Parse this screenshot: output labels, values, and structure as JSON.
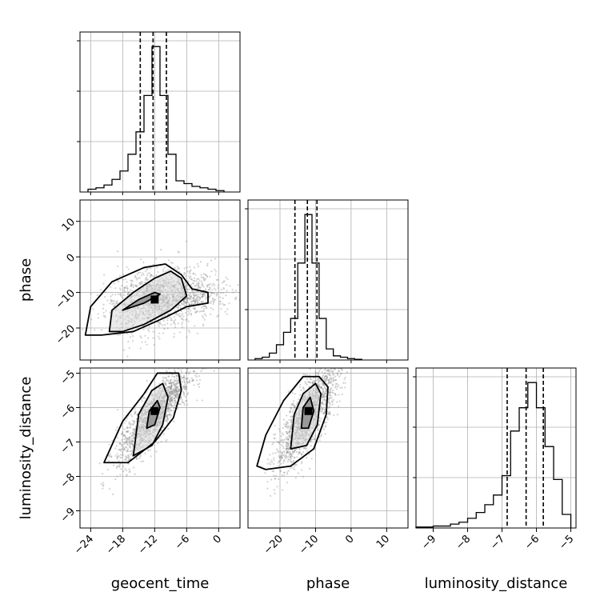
{
  "chart_data": {
    "type": "corner",
    "parameters": [
      "geocent_time",
      "phase",
      "luminosity_distance"
    ],
    "axis_labels": {
      "geocent_time": "geocent_time",
      "phase": "phase",
      "luminosity_distance": "luminosity_distance"
    },
    "ranges": {
      "geocent_time": [
        -26,
        4
      ],
      "phase": [
        -29,
        16
      ],
      "luminosity_distance": [
        -9.5,
        -4.85
      ]
    },
    "ticks": {
      "geocent_time": [
        -24,
        -18,
        -12,
        -6,
        0
      ],
      "phase": [
        -20,
        -10,
        0,
        10
      ],
      "luminosity_distance": [
        -9,
        -8,
        -7,
        -6,
        -5
      ]
    },
    "tick_labels": {
      "geocent_time": [
        "−24",
        "−18",
        "−12",
        "−6",
        "0"
      ],
      "phase": [
        "−20",
        "−10",
        "0",
        "10"
      ],
      "luminosity_distance": [
        "−9",
        "−8",
        "−7",
        "−6",
        "−5"
      ]
    },
    "grid": true,
    "quantiles": {
      "geocent_time": [
        -14.7,
        -12.3,
        -9.8
      ],
      "phase": [
        -15.8,
        -12.3,
        -9.6
      ],
      "luminosity_distance": [
        -6.85,
        -6.3,
        -5.8
      ]
    },
    "histograms": {
      "geocent_time": {
        "edges": [
          -24.5,
          -23,
          -21.5,
          -20,
          -18.5,
          -17,
          -15.5,
          -14,
          -12.5,
          -11,
          -9.5,
          -8,
          -6.5,
          -5,
          -3.5,
          -2,
          -0.5,
          1
        ],
        "counts": [
          2,
          3,
          5,
          9,
          15,
          27,
          43,
          69,
          104,
          69,
          27,
          8,
          6,
          4,
          3,
          2,
          1
        ]
      },
      "phase": {
        "edges": [
          -27,
          -25,
          -23,
          -21,
          -19,
          -17,
          -15,
          -13,
          -11,
          -9,
          -7,
          -5,
          -3,
          -1,
          1,
          3
        ],
        "counts": [
          1,
          2,
          5,
          11,
          20,
          30,
          70,
          105,
          70,
          30,
          8,
          3,
          2,
          1,
          0.5
        ]
      },
      "luminosity_distance": {
        "edges": [
          -9.5,
          -9.25,
          -9,
          -8.75,
          -8.5,
          -8.25,
          -8,
          -7.75,
          -7.5,
          -7.25,
          -7,
          -6.75,
          -6.5,
          -6.25,
          -6,
          -5.75,
          -5.5,
          -5.25,
          -5
        ],
        "counts": [
          0.5,
          0.5,
          1,
          1,
          2,
          3,
          5,
          8,
          12,
          17,
          27,
          50,
          62,
          75,
          62,
          42,
          25,
          7
        ]
      }
    },
    "scatter": {
      "phase_vs_geocent_time": {
        "center": [
          -12,
          -12
        ],
        "sigma": [
          4.5,
          4.5
        ],
        "correlation": 0.25,
        "tail_center": [
          -5,
          -11
        ],
        "tail_sigma": [
          4,
          3
        ]
      },
      "luminosity_distance_vs_geocent_time": {
        "center": [
          -12,
          -6.2
        ],
        "sigma": [
          3.5,
          0.7
        ],
        "correlation": 0.85
      },
      "luminosity_distance_vs_phase": {
        "center": [
          -12,
          -6.2
        ],
        "sigma": [
          4.5,
          0.8
        ],
        "correlation": 0.8
      }
    },
    "contours": {
      "phase_vs_geocent_time": [
        [
          [
            -18,
            -15
          ],
          [
            -14,
            -13
          ],
          [
            -11,
            -10.5
          ],
          [
            -12,
            -10
          ],
          [
            -15,
            -12
          ],
          [
            -17,
            -14
          ]
        ],
        [
          [
            -20.5,
            -21
          ],
          [
            -20,
            -15
          ],
          [
            -16,
            -10
          ],
          [
            -12,
            -6
          ],
          [
            -9,
            -4
          ],
          [
            -7,
            -6
          ],
          [
            -6,
            -11
          ],
          [
            -9,
            -15
          ],
          [
            -14,
            -19
          ],
          [
            -18,
            -21
          ]
        ],
        [
          [
            -25,
            -22
          ],
          [
            -24,
            -14
          ],
          [
            -20,
            -7
          ],
          [
            -14,
            -3
          ],
          [
            -10,
            -2
          ],
          [
            -7,
            -5
          ],
          [
            -5,
            -9
          ],
          [
            -2,
            -10
          ],
          [
            -2,
            -13
          ],
          [
            -6,
            -14
          ],
          [
            -10,
            -17
          ],
          [
            -16,
            -21
          ],
          [
            -22,
            -22
          ]
        ]
      ],
      "luminosity_distance_vs_geocent_time": [
        [
          [
            -13.5,
            -6.6
          ],
          [
            -13,
            -6.1
          ],
          [
            -11.5,
            -5.8
          ],
          [
            -11,
            -6
          ],
          [
            -12,
            -6.5
          ]
        ],
        [
          [
            -16,
            -7.4
          ],
          [
            -15,
            -6.2
          ],
          [
            -12.5,
            -5.5
          ],
          [
            -10.5,
            -5.3
          ],
          [
            -9.5,
            -5.7
          ],
          [
            -10.5,
            -6.5
          ],
          [
            -12.5,
            -7.1
          ]
        ],
        [
          [
            -21.5,
            -7.6
          ],
          [
            -18,
            -6.4
          ],
          [
            -14,
            -5.6
          ],
          [
            -11.5,
            -5.0
          ],
          [
            -7.5,
            -5.0
          ],
          [
            -7,
            -5.5
          ],
          [
            -8.5,
            -6.3
          ],
          [
            -12,
            -7
          ],
          [
            -17,
            -7.6
          ]
        ]
      ],
      "luminosity_distance_vs_phase": [
        [
          [
            -14,
            -6.6
          ],
          [
            -13.5,
            -6.0
          ],
          [
            -11.5,
            -5.7
          ],
          [
            -10.5,
            -6.1
          ],
          [
            -12,
            -6.6
          ]
        ],
        [
          [
            -17,
            -7.2
          ],
          [
            -16,
            -6.2
          ],
          [
            -13.5,
            -5.6
          ],
          [
            -10,
            -5.3
          ],
          [
            -8.5,
            -5.6
          ],
          [
            -9.5,
            -6.5
          ],
          [
            -12.5,
            -7.1
          ]
        ],
        [
          [
            -26.5,
            -7.7
          ],
          [
            -24,
            -6.8
          ],
          [
            -19,
            -5.8
          ],
          [
            -13.5,
            -5.1
          ],
          [
            -9,
            -5.1
          ],
          [
            -6.5,
            -5.4
          ],
          [
            -7,
            -6.2
          ],
          [
            -10.5,
            -7.2
          ],
          [
            -17,
            -7.7
          ],
          [
            -24,
            -7.8
          ]
        ]
      ]
    },
    "peaks": {
      "phase_vs_geocent_time": [
        -12,
        -12
      ],
      "luminosity_distance_vs_geocent_time": [
        -12,
        -6.1
      ],
      "luminosity_distance_vs_phase": [
        -12,
        -6.1
      ]
    }
  }
}
